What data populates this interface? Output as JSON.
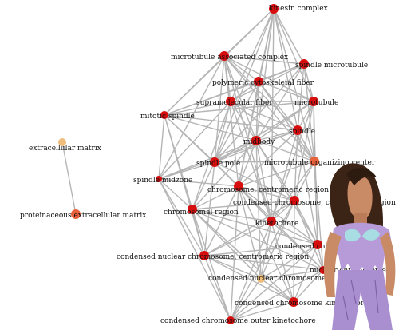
{
  "graph": {
    "nodes": [
      {
        "id": "kinesin",
        "label": "kinesin complex",
        "color": "red"
      },
      {
        "id": "mac",
        "label": "microtubule associated complex",
        "color": "red"
      },
      {
        "id": "spmt",
        "label": "spindle microtubule",
        "color": "red"
      },
      {
        "id": "pcf",
        "label": "polymeric cytoskeletal fiber",
        "color": "red"
      },
      {
        "id": "smf",
        "label": "supramolecular fiber",
        "color": "red"
      },
      {
        "id": "mt",
        "label": "microtubule",
        "color": "red"
      },
      {
        "id": "mitspin",
        "label": "mitotic spindle",
        "color": "red"
      },
      {
        "id": "spindle",
        "label": "spindle",
        "color": "red"
      },
      {
        "id": "midbody",
        "label": "midbody",
        "color": "red"
      },
      {
        "id": "extra",
        "label": "extracellular matrix",
        "color": "tan"
      },
      {
        "id": "mtoc",
        "label": "microtubule organizing center",
        "color": "orange"
      },
      {
        "id": "spole",
        "label": "spindle pole",
        "color": "red"
      },
      {
        "id": "midzone",
        "label": "spindle midzone",
        "color": "red"
      },
      {
        "id": "chromcen",
        "label": "chromosome, centromeric region",
        "color": "red"
      },
      {
        "id": "condcen",
        "label": "condensed chromosome, centromeric region",
        "color": "red"
      },
      {
        "id": "chromreg",
        "label": "chromosomal region",
        "color": "red"
      },
      {
        "id": "proteo",
        "label": "proteinaceous extracellular matrix",
        "color": "orange"
      },
      {
        "id": "kinet",
        "label": "kinetochore",
        "color": "red"
      },
      {
        "id": "condchrom",
        "label": "condensed chromosome",
        "color": "red"
      },
      {
        "id": "cnccr",
        "label": "condensed nuclear chromosome, centromeric region",
        "color": "red"
      },
      {
        "id": "nuclear",
        "label": "nuclear chromosome",
        "color": "red"
      },
      {
        "id": "cnc",
        "label": "condensed nuclear chromosome",
        "color": "tan"
      },
      {
        "id": "cck",
        "label": "condensed chromosome kinetochore",
        "color": "red"
      },
      {
        "id": "ccok",
        "label": "condensed chromosome outer kinetochore",
        "color": "red"
      }
    ],
    "edges": [
      [
        "extra",
        "proteo"
      ],
      [
        "kinesin",
        "mac"
      ],
      [
        "kinesin",
        "spmt"
      ],
      [
        "kinesin",
        "pcf"
      ],
      [
        "kinesin",
        "smf"
      ],
      [
        "kinesin",
        "mt"
      ],
      [
        "kinesin",
        "spindle"
      ],
      [
        "kinesin",
        "midbody"
      ],
      [
        "kinesin",
        "mitspin"
      ],
      [
        "kinesin",
        "spole"
      ],
      [
        "kinesin",
        "chromcen"
      ],
      [
        "kinesin",
        "kinet"
      ],
      [
        "kinesin",
        "mtoc"
      ],
      [
        "mac",
        "spmt"
      ],
      [
        "mac",
        "pcf"
      ],
      [
        "mac",
        "smf"
      ],
      [
        "mac",
        "mt"
      ],
      [
        "mac",
        "mitspin"
      ],
      [
        "mac",
        "spindle"
      ],
      [
        "mac",
        "midbody"
      ],
      [
        "mac",
        "spole"
      ],
      [
        "mac",
        "mtoc"
      ],
      [
        "mac",
        "midzone"
      ],
      [
        "mac",
        "chromcen"
      ],
      [
        "mac",
        "kinet"
      ],
      [
        "spmt",
        "pcf"
      ],
      [
        "spmt",
        "smf"
      ],
      [
        "spmt",
        "mt"
      ],
      [
        "spmt",
        "spindle"
      ],
      [
        "spmt",
        "midbody"
      ],
      [
        "spmt",
        "mtoc"
      ],
      [
        "spmt",
        "spole"
      ],
      [
        "spmt",
        "mitspin"
      ],
      [
        "pcf",
        "smf"
      ],
      [
        "pcf",
        "mt"
      ],
      [
        "pcf",
        "spindle"
      ],
      [
        "pcf",
        "midbody"
      ],
      [
        "pcf",
        "mitspin"
      ],
      [
        "pcf",
        "spole"
      ],
      [
        "pcf",
        "mtoc"
      ],
      [
        "pcf",
        "chromcen"
      ],
      [
        "smf",
        "mt"
      ],
      [
        "smf",
        "mitspin"
      ],
      [
        "smf",
        "spindle"
      ],
      [
        "smf",
        "midbody"
      ],
      [
        "smf",
        "spole"
      ],
      [
        "smf",
        "mtoc"
      ],
      [
        "smf",
        "midzone"
      ],
      [
        "smf",
        "chromreg"
      ],
      [
        "smf",
        "kinet"
      ],
      [
        "mt",
        "spindle"
      ],
      [
        "mt",
        "midbody"
      ],
      [
        "mt",
        "mtoc"
      ],
      [
        "mt",
        "spole"
      ],
      [
        "mt",
        "mitspin"
      ],
      [
        "mt",
        "condcen"
      ],
      [
        "mt",
        "kinet"
      ],
      [
        "mt",
        "condchrom"
      ],
      [
        "mitspin",
        "spindle"
      ],
      [
        "mitspin",
        "midbody"
      ],
      [
        "mitspin",
        "spole"
      ],
      [
        "mitspin",
        "midzone"
      ],
      [
        "mitspin",
        "chromreg"
      ],
      [
        "mitspin",
        "cnccr"
      ],
      [
        "mitspin",
        "chromcen"
      ],
      [
        "spindle",
        "midbody"
      ],
      [
        "spindle",
        "mtoc"
      ],
      [
        "spindle",
        "spole"
      ],
      [
        "spindle",
        "chromcen"
      ],
      [
        "spindle",
        "condcen"
      ],
      [
        "spindle",
        "kinet"
      ],
      [
        "spindle",
        "condchrom"
      ],
      [
        "spindle",
        "midzone"
      ],
      [
        "midbody",
        "spole"
      ],
      [
        "midbody",
        "mtoc"
      ],
      [
        "midbody",
        "midzone"
      ],
      [
        "midbody",
        "chromcen"
      ],
      [
        "midbody",
        "condcen"
      ],
      [
        "midbody",
        "chromreg"
      ],
      [
        "midbody",
        "kinet"
      ],
      [
        "midbody",
        "condchrom"
      ],
      [
        "midbody",
        "cnc"
      ],
      [
        "mtoc",
        "spole"
      ],
      [
        "mtoc",
        "chromcen"
      ],
      [
        "mtoc",
        "condcen"
      ],
      [
        "mtoc",
        "kinet"
      ],
      [
        "mtoc",
        "condchrom"
      ],
      [
        "mtoc",
        "nuclear"
      ],
      [
        "spole",
        "midzone"
      ],
      [
        "spole",
        "chromcen"
      ],
      [
        "spole",
        "chromreg"
      ],
      [
        "spole",
        "kinet"
      ],
      [
        "spole",
        "condcen"
      ],
      [
        "spole",
        "cnccr"
      ],
      [
        "midzone",
        "chromreg"
      ],
      [
        "midzone",
        "cnccr"
      ],
      [
        "midzone",
        "chromcen"
      ],
      [
        "midzone",
        "ccok"
      ],
      [
        "chromcen",
        "condcen"
      ],
      [
        "chromcen",
        "chromreg"
      ],
      [
        "chromcen",
        "kinet"
      ],
      [
        "chromcen",
        "condchrom"
      ],
      [
        "chromcen",
        "cnccr"
      ],
      [
        "chromcen",
        "nuclear"
      ],
      [
        "chromcen",
        "cnc"
      ],
      [
        "chromcen",
        "cck"
      ],
      [
        "chromcen",
        "ccok"
      ],
      [
        "condcen",
        "chromreg"
      ],
      [
        "condcen",
        "kinet"
      ],
      [
        "condcen",
        "condchrom"
      ],
      [
        "condcen",
        "cnccr"
      ],
      [
        "condcen",
        "nuclear"
      ],
      [
        "condcen",
        "cnc"
      ],
      [
        "condcen",
        "cck"
      ],
      [
        "condcen",
        "ccok"
      ],
      [
        "chromreg",
        "kinet"
      ],
      [
        "chromreg",
        "condchrom"
      ],
      [
        "chromreg",
        "cnccr"
      ],
      [
        "chromreg",
        "nuclear"
      ],
      [
        "chromreg",
        "cnc"
      ],
      [
        "chromreg",
        "cck"
      ],
      [
        "chromreg",
        "ccok"
      ],
      [
        "kinet",
        "condchrom"
      ],
      [
        "kinet",
        "cnccr"
      ],
      [
        "kinet",
        "nuclear"
      ],
      [
        "kinet",
        "cnc"
      ],
      [
        "kinet",
        "cck"
      ],
      [
        "kinet",
        "ccok"
      ],
      [
        "condchrom",
        "cnccr"
      ],
      [
        "condchrom",
        "nuclear"
      ],
      [
        "condchrom",
        "cnc"
      ],
      [
        "condchrom",
        "cck"
      ],
      [
        "condchrom",
        "ccok"
      ],
      [
        "cnccr",
        "nuclear"
      ],
      [
        "cnccr",
        "cnc"
      ],
      [
        "cnccr",
        "cck"
      ],
      [
        "cnccr",
        "ccok"
      ],
      [
        "nuclear",
        "cnc"
      ],
      [
        "nuclear",
        "cck"
      ],
      [
        "nuclear",
        "ccok"
      ],
      [
        "cnc",
        "cck"
      ],
      [
        "cnc",
        "ccok"
      ],
      [
        "cck",
        "ccok"
      ]
    ]
  }
}
